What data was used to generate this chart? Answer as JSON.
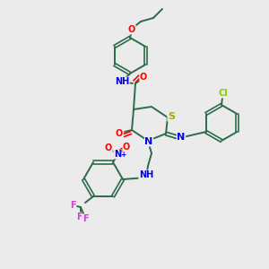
{
  "bg_color": "#ebebeb",
  "bond_color": "#2d6b4a",
  "atom_colors": {
    "N": "#0000ee",
    "O": "#ff0000",
    "S": "#aaaa00",
    "Cl": "#88cc00",
    "F": "#cc44cc",
    "C": "#2d6b4a"
  },
  "figsize": [
    3.0,
    3.0
  ],
  "dpi": 100
}
